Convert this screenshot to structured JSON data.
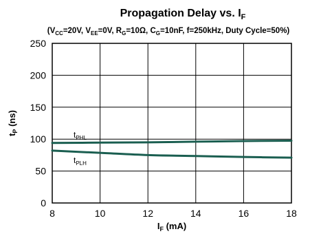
{
  "chart_data": {
    "type": "line",
    "title": "Propagation Delay vs. I",
    "title_sub": "F",
    "subtitle_parts": [
      {
        "t": "(V"
      },
      {
        "t": "CC",
        "sub": true
      },
      {
        "t": "=20V, V"
      },
      {
        "t": "EE",
        "sub": true
      },
      {
        "t": "=0V, R"
      },
      {
        "t": "G",
        "sub": true
      },
      {
        "t": "=10Ω, C"
      },
      {
        "t": "G",
        "sub": true
      },
      {
        "t": "=10nF, f=250kHz, Duty Cycle=50%)"
      }
    ],
    "xlabel": "I",
    "xlabel_sub": "F",
    "xlabel_unit": " (mA)",
    "ylabel": "t",
    "ylabel_sub": "P",
    "ylabel_unit": " (ns)",
    "xlim": [
      8,
      18
    ],
    "ylim": [
      0,
      250
    ],
    "x_ticks": [
      8,
      10,
      12,
      14,
      16,
      18
    ],
    "y_ticks": [
      0,
      50,
      100,
      150,
      200,
      250
    ],
    "grid": true,
    "line_color": "#1a5e50",
    "series": [
      {
        "name": "t",
        "name_sub": "PHL",
        "x": [
          8,
          10,
          12,
          14,
          16,
          18
        ],
        "values": [
          94,
          94.5,
          95,
          96,
          97,
          97.5
        ]
      },
      {
        "name": "t",
        "name_sub": "PLH",
        "x": [
          8,
          10,
          12,
          14,
          16,
          18
        ],
        "values": [
          82,
          78.5,
          75,
          73.5,
          72,
          71
        ]
      }
    ]
  }
}
